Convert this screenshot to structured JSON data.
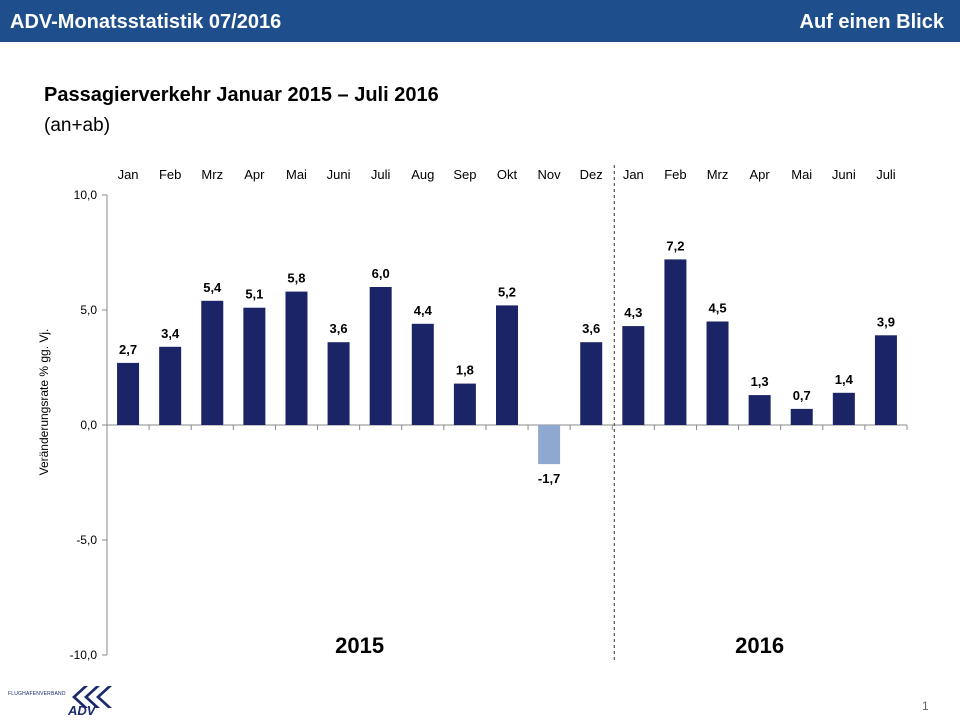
{
  "header": {
    "left_title": "ADV-Monatsstatistik 07/2016",
    "right_title": "Auf einen Blick"
  },
  "title": "Passagierverkehr  Januar 2015 – Juli 2016",
  "subtitle": "(an+ab)",
  "footer": {
    "logo_small_text": "FLUGHAFENVERBAND",
    "logo_brand": "ADV",
    "page_number": "1"
  },
  "colors": {
    "header_bg": "#1f4e8c",
    "bar_positive": "#1a2466",
    "bar_negative": "#8fa8d0"
  },
  "chart_data": {
    "type": "bar",
    "ylabel": "Veränderungsrate % gg. Vj.",
    "ylim": [
      -10,
      10
    ],
    "yticks": [
      10,
      5,
      0,
      -5,
      -10
    ],
    "ytick_labels": [
      "10,0",
      "5,0",
      "0,0",
      "-5,0",
      "-10,0"
    ],
    "categories": [
      "Jan",
      "Feb",
      "Mrz",
      "Apr",
      "Mai",
      "Juni",
      "Juli",
      "Aug",
      "Sep",
      "Okt",
      "Nov",
      "Dez",
      "Jan",
      "Feb",
      "Mrz",
      "Apr",
      "Mai",
      "Juni",
      "Juli"
    ],
    "values": [
      2.7,
      3.4,
      5.4,
      5.1,
      5.8,
      3.6,
      6.0,
      4.4,
      1.8,
      5.2,
      -1.7,
      3.6,
      4.3,
      7.2,
      4.5,
      1.3,
      0.7,
      1.4,
      3.9
    ],
    "value_labels": [
      "2,7",
      "3,4",
      "5,4",
      "5,1",
      "5,8",
      "3,6",
      "6,0",
      "4,4",
      "1,8",
      "5,2",
      "-1,7",
      "3,6",
      "4,3",
      "7,2",
      "4,5",
      "1,3",
      "0,7",
      "1,4",
      "3,9"
    ],
    "groups": [
      {
        "label": "2015",
        "start": 0,
        "count": 12
      },
      {
        "label": "2016",
        "start": 12,
        "count": 7
      }
    ]
  }
}
